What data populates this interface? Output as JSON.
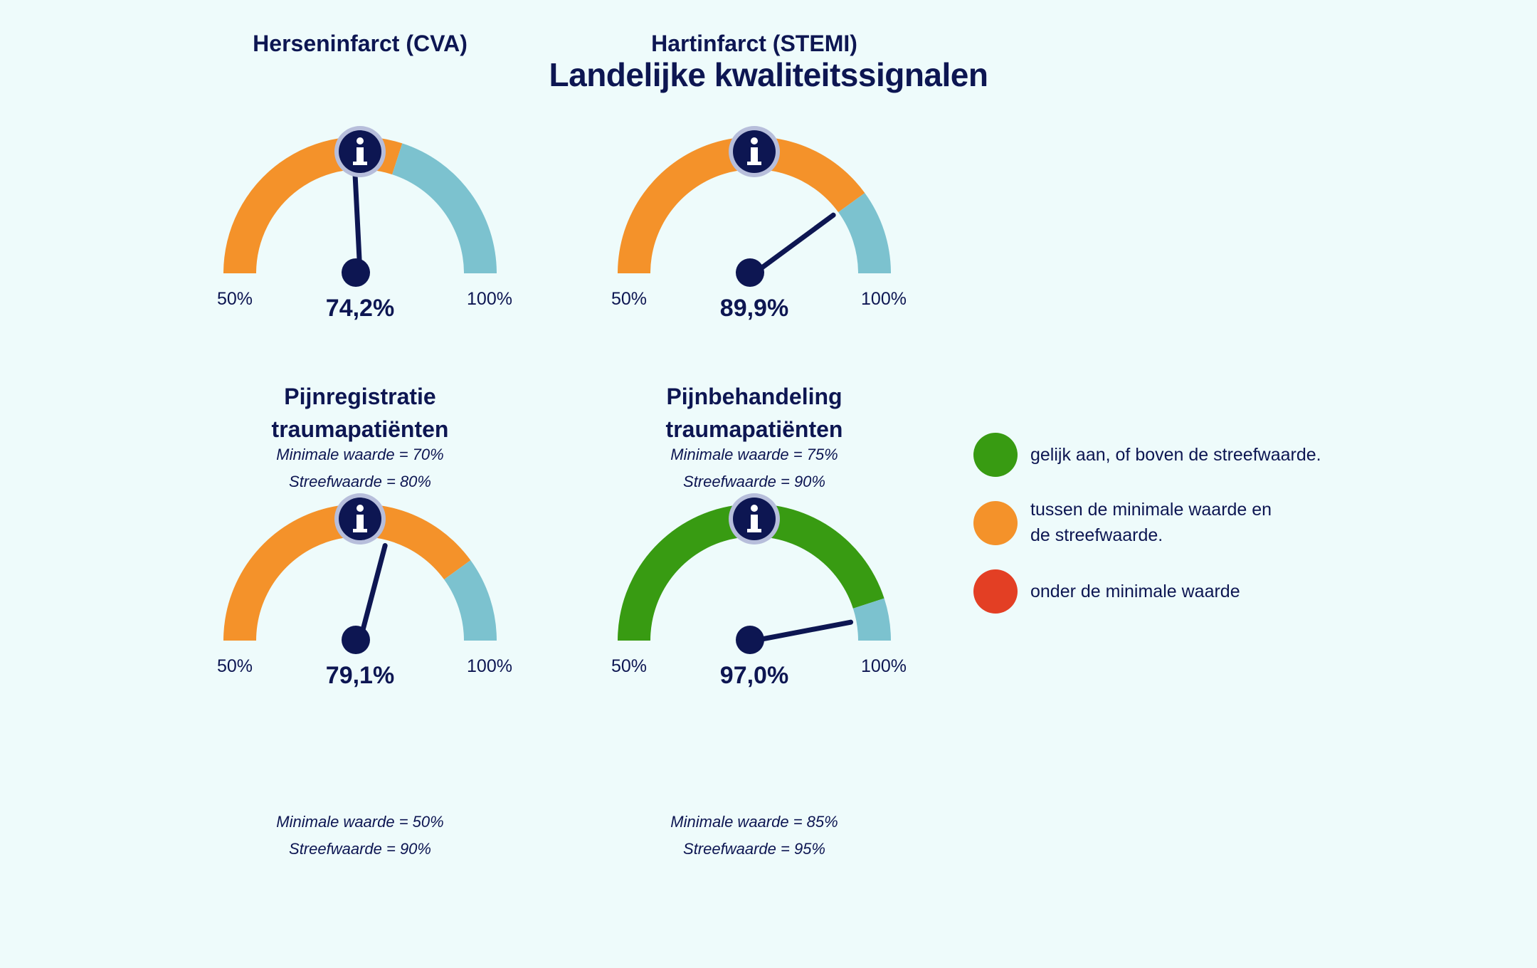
{
  "title": "Landelijke kwaliteitssignalen",
  "colors": {
    "navy": "#0d1652",
    "orange": "#f4922a",
    "green": "#389b12",
    "red": "#e33f24",
    "blue": "#7cc2cf",
    "background": "#eefbfb"
  },
  "info_icon": "info-icon",
  "chart_data": [
    {
      "type": "gauge",
      "title_lines": [
        "Herseninfarct (CVA)"
      ],
      "value": 74.2,
      "value_label": "74,2%",
      "min_label": "50%",
      "max_label": "100%",
      "range": [
        50,
        100
      ],
      "minimal_value": 70,
      "target_value": 80,
      "minimal_label": "Minimale waarde = 70%",
      "target_label": "Streefwaarde = 80%",
      "status": "orange"
    },
    {
      "type": "gauge",
      "title_lines": [
        "Hartinfarct (STEMI)"
      ],
      "value": 89.9,
      "value_label": "89,9%",
      "min_label": "50%",
      "max_label": "100%",
      "range": [
        50,
        100
      ],
      "minimal_value": 75,
      "target_value": 90,
      "minimal_label": "Minimale waarde = 75%",
      "target_label": "Streefwaarde = 90%",
      "status": "orange"
    },
    {
      "type": "gauge",
      "title_lines": [
        "Pijnregistratie",
        "traumapatiënten"
      ],
      "value": 79.1,
      "value_label": "79,1%",
      "min_label": "50%",
      "max_label": "100%",
      "range": [
        50,
        100
      ],
      "minimal_value": 50,
      "target_value": 90,
      "minimal_label": "Minimale waarde = 50%",
      "target_label": "Streefwaarde = 90%",
      "status": "orange"
    },
    {
      "type": "gauge",
      "title_lines": [
        "Pijnbehandeling",
        "traumapatiënten"
      ],
      "value": 97.0,
      "value_label": "97,0%",
      "min_label": "50%",
      "max_label": "100%",
      "range": [
        50,
        100
      ],
      "minimal_value": 85,
      "target_value": 95,
      "minimal_label": "Minimale waarde = 85%",
      "target_label": "Streefwaarde = 95%",
      "status": "green"
    }
  ],
  "legend": [
    {
      "color": "green",
      "lines": [
        "gelijk aan, of boven de streefwaarde."
      ]
    },
    {
      "color": "orange",
      "lines": [
        "tussen de minimale waarde en",
        "de streefwaarde."
      ]
    },
    {
      "color": "red",
      "lines": [
        "onder de minimale waarde"
      ]
    }
  ]
}
